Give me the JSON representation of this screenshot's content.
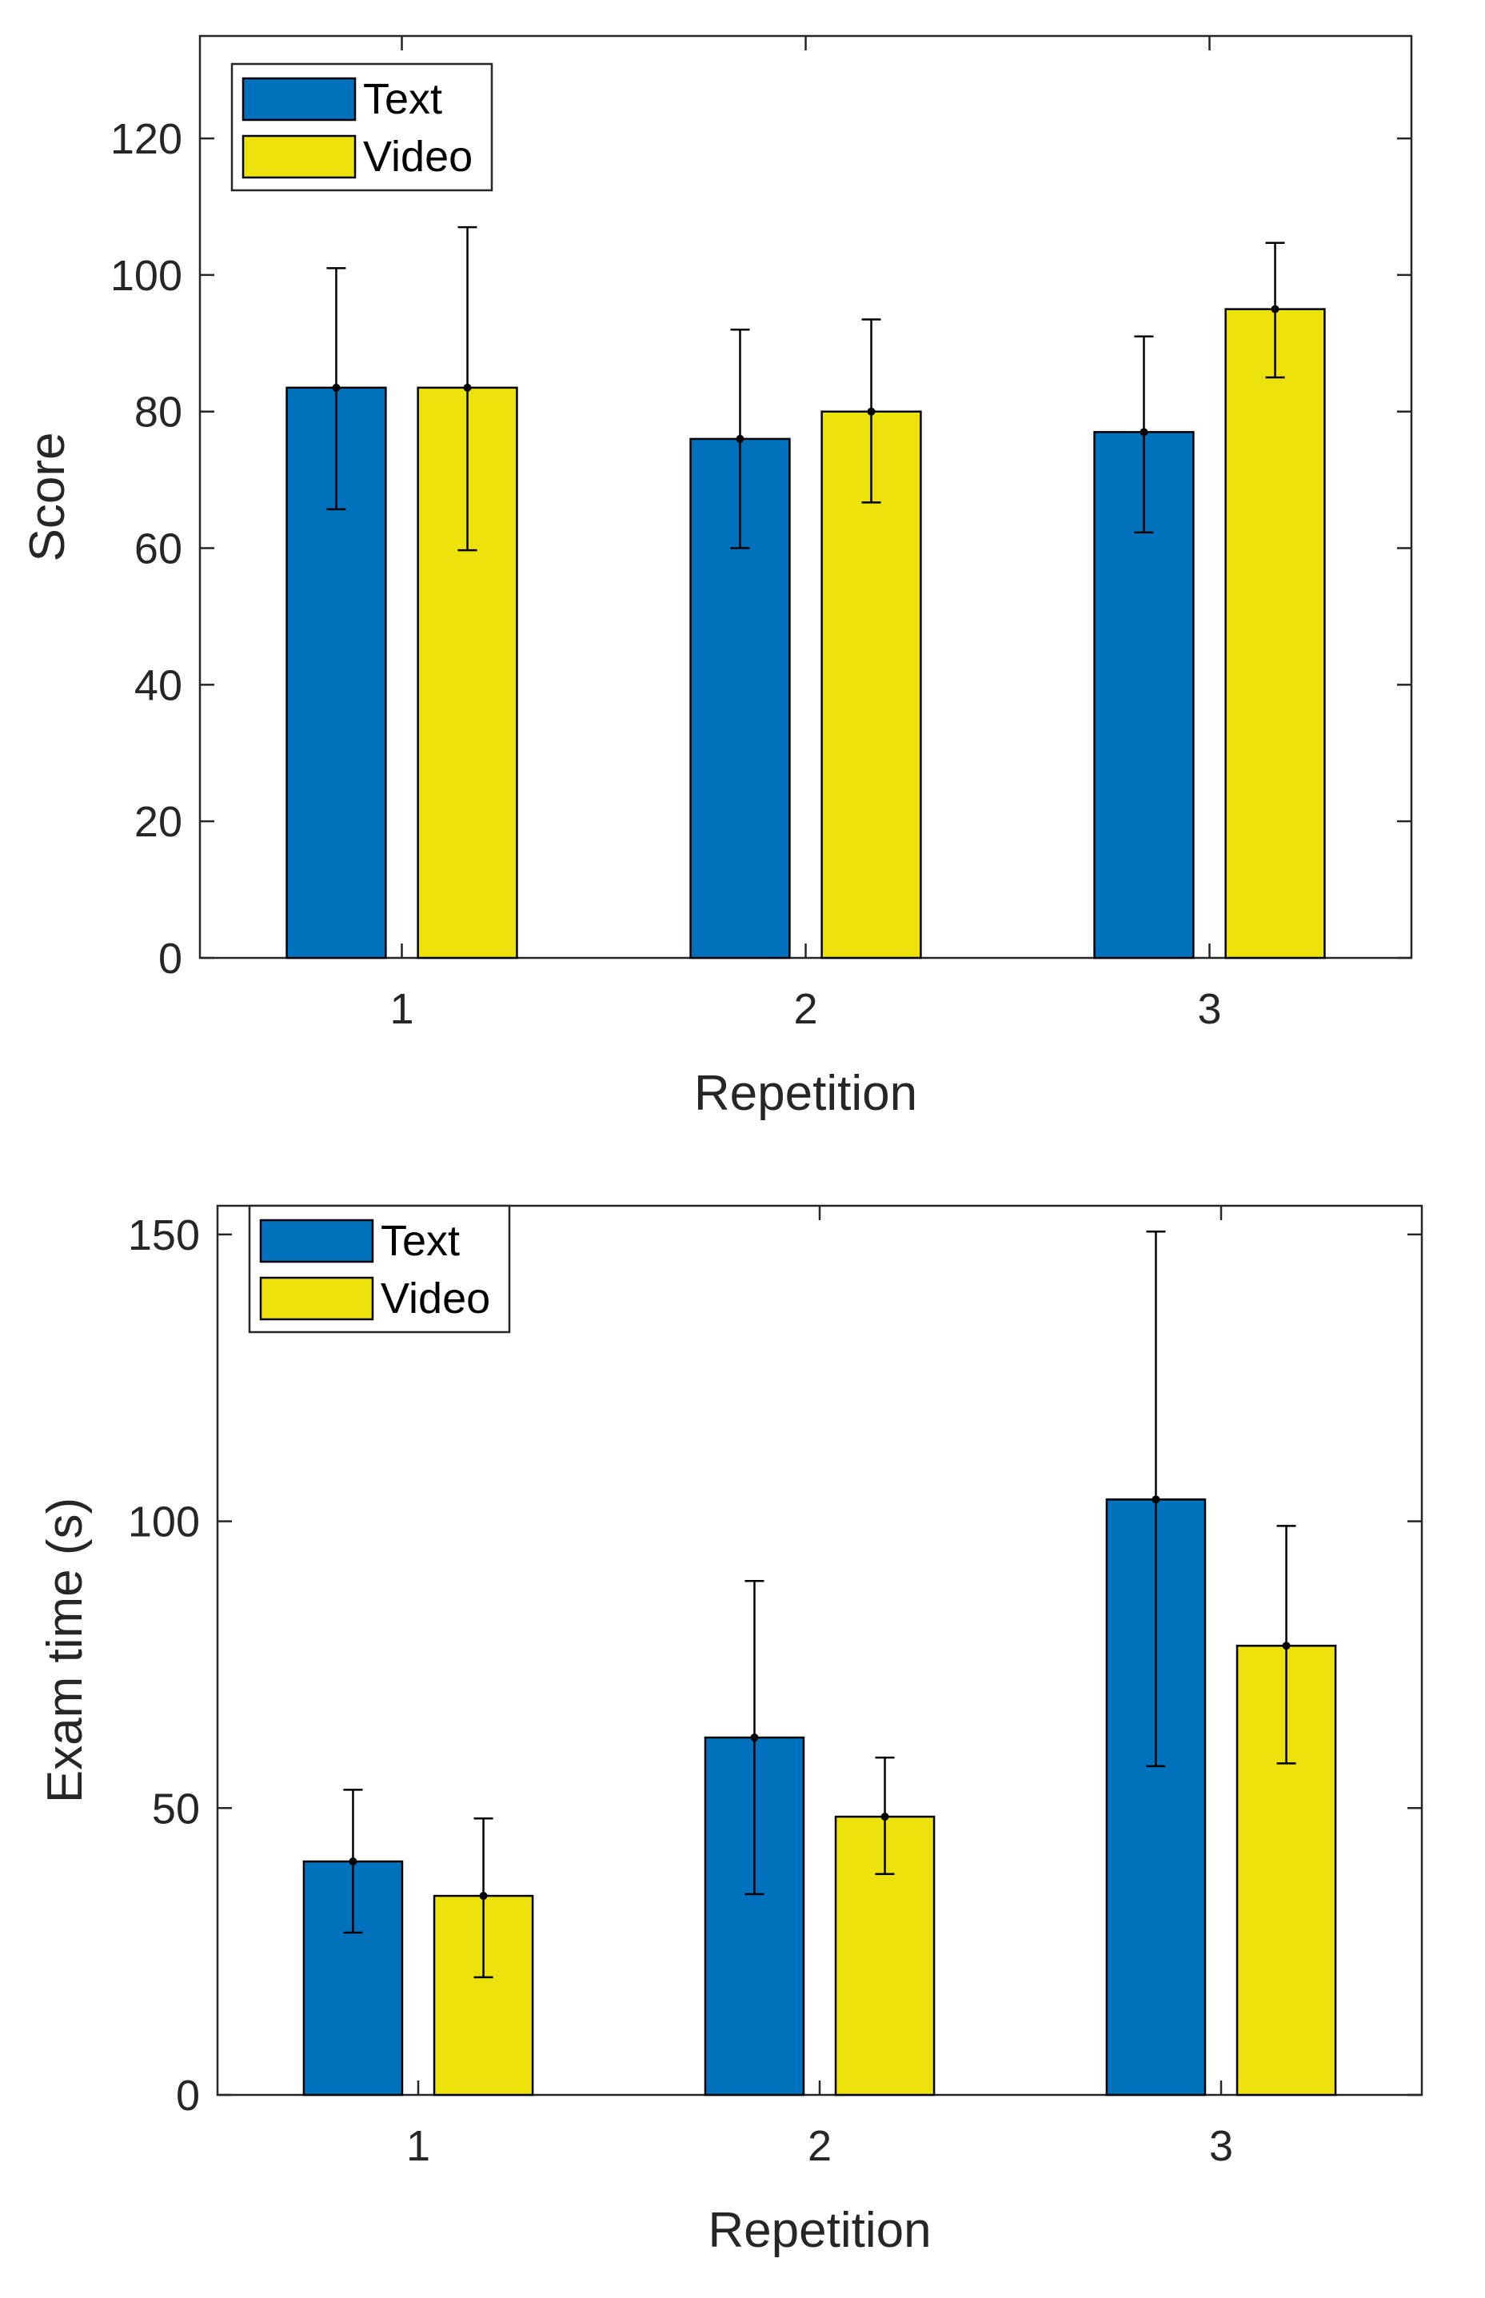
{
  "colors": {
    "text": "#0072BD",
    "video": "#EDE20B",
    "axis": "#262626",
    "errorbar": "#000000"
  },
  "chart_data": [
    {
      "type": "bar",
      "categories": [
        "1",
        "2",
        "3"
      ],
      "series": [
        {
          "name": "Text",
          "values": [
            83.5,
            76,
            77
          ],
          "err_low": [
            65.7,
            60,
            62.3
          ],
          "err_high": [
            101,
            92,
            91
          ]
        },
        {
          "name": "Video",
          "values": [
            83.5,
            80,
            95
          ],
          "err_low": [
            59.7,
            66.7,
            85
          ],
          "err_high": [
            107,
            93.5,
            104.7
          ]
        }
      ],
      "xlabel": "Repetition",
      "ylabel": "Score",
      "ylim": [
        0,
        135
      ],
      "yticks": [
        0,
        20,
        40,
        60,
        80,
        100,
        120
      ],
      "legend": "top-left"
    },
    {
      "type": "bar",
      "categories": [
        "1",
        "2",
        "3"
      ],
      "series": [
        {
          "name": "Text",
          "values": [
            40.7,
            62.3,
            103.8
          ],
          "err_low": [
            28.3,
            35,
            57.3
          ],
          "err_high": [
            53.2,
            89.6,
            150.5
          ]
        },
        {
          "name": "Video",
          "values": [
            34.7,
            48.5,
            78.3
          ],
          "err_low": [
            20.5,
            38.5,
            57.8
          ],
          "err_high": [
            48.2,
            58.8,
            99.2
          ]
        }
      ],
      "xlabel": "Repetition",
      "ylabel": "Exam time (s)",
      "ylim": [
        0,
        155
      ],
      "yticks": [
        0,
        50,
        100,
        150
      ],
      "legend": "top-left"
    }
  ]
}
